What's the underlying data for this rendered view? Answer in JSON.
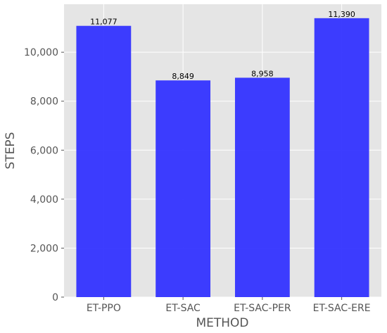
{
  "chart_data": {
    "type": "bar",
    "title": "",
    "xlabel": "METHOD",
    "ylabel": "STEPS",
    "categories": [
      "ET-PPO",
      "ET-SAC",
      "ET-SAC-PER",
      "ET-SAC-ERE"
    ],
    "values": [
      11077,
      8849,
      8958,
      11390
    ],
    "data_labels": [
      "11,077",
      "8,849",
      "8,958",
      "11,390"
    ],
    "ylim": [
      0,
      11960
    ],
    "yticks": [
      0,
      2000,
      4000,
      6000,
      8000,
      10000
    ],
    "ytick_labels": [
      "0",
      "2,000",
      "4,000",
      "6,000",
      "8,000",
      "10,000"
    ],
    "grid": true,
    "legend": "none",
    "colors": {
      "bar": "#3333ff",
      "plot_background": "#e5e5e5",
      "grid": "#ffffff"
    }
  }
}
